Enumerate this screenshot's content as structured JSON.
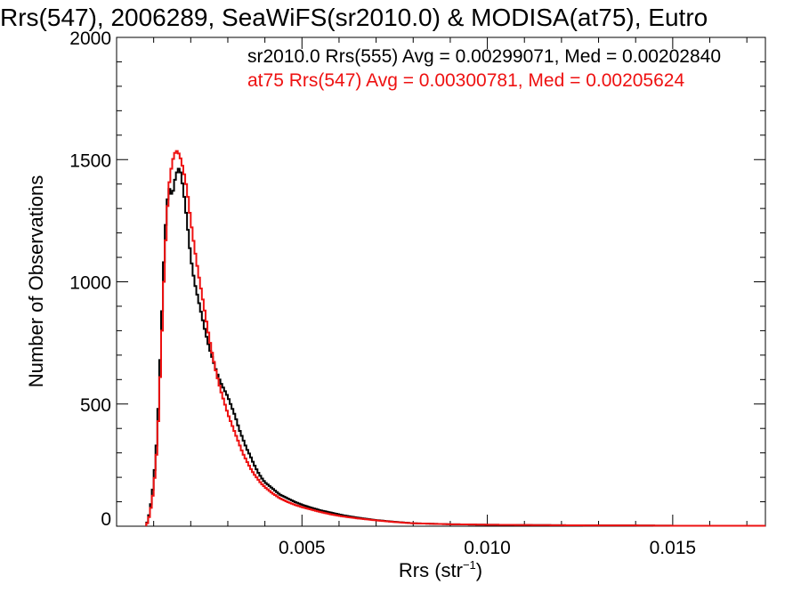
{
  "chart_data": {
    "type": "histogram",
    "title": "Rrs(547), 2006289, SeaWiFS(sr2010.0) & MODISA(at75), Eutro",
    "xlabel": {
      "main": "Rrs (str",
      "sup": "−1",
      "close": ")"
    },
    "ylabel": "Number of Observations",
    "xlim": [
      0.0,
      0.0175
    ],
    "ylim": [
      0,
      2000
    ],
    "x_ticks": [
      {
        "value": 0.005,
        "label": "0.005"
      },
      {
        "value": 0.01,
        "label": "0.010"
      },
      {
        "value": 0.015,
        "label": "0.015"
      }
    ],
    "y_ticks": [
      {
        "value": 0,
        "label": "0"
      },
      {
        "value": 500,
        "label": "500"
      },
      {
        "value": 1000,
        "label": "1000"
      },
      {
        "value": 1500,
        "label": "1500"
      },
      {
        "value": 2000,
        "label": "2000"
      }
    ],
    "grid": false,
    "legend": "top-right",
    "series": [
      {
        "name": "sr2010.0 Rrs(555)",
        "label": "sr2010.0 Rrs(555) Avg = 0.00299071, Med = 0.00202840",
        "color": "#000000",
        "points": [
          [
            0.0008,
            0
          ],
          [
            0.0009,
            60
          ],
          [
            0.001,
            180
          ],
          [
            0.0011,
            380
          ],
          [
            0.0012,
            780
          ],
          [
            0.0013,
            1180
          ],
          [
            0.0014,
            1390
          ],
          [
            0.0015,
            1350
          ],
          [
            0.0016,
            1440
          ],
          [
            0.0017,
            1470
          ],
          [
            0.0018,
            1380
          ],
          [
            0.0019,
            1250
          ],
          [
            0.002,
            1100
          ],
          [
            0.0021,
            1000
          ],
          [
            0.0022,
            930
          ],
          [
            0.0023,
            860
          ],
          [
            0.0024,
            790
          ],
          [
            0.0025,
            730
          ],
          [
            0.0026,
            680
          ],
          [
            0.0027,
            630
          ],
          [
            0.0028,
            590
          ],
          [
            0.0029,
            560
          ],
          [
            0.003,
            530
          ],
          [
            0.0031,
            490
          ],
          [
            0.0032,
            450
          ],
          [
            0.0033,
            400
          ],
          [
            0.0034,
            360
          ],
          [
            0.0035,
            320
          ],
          [
            0.0036,
            290
          ],
          [
            0.0037,
            255
          ],
          [
            0.0038,
            225
          ],
          [
            0.0039,
            200
          ],
          [
            0.004,
            180
          ],
          [
            0.0042,
            155
          ],
          [
            0.0044,
            130
          ],
          [
            0.0046,
            115
          ],
          [
            0.0048,
            100
          ],
          [
            0.005,
            88
          ],
          [
            0.0052,
            78
          ],
          [
            0.0055,
            65
          ],
          [
            0.0058,
            55
          ],
          [
            0.0061,
            45
          ],
          [
            0.0065,
            35
          ],
          [
            0.007,
            25
          ],
          [
            0.0075,
            18
          ],
          [
            0.008,
            12
          ],
          [
            0.009,
            8
          ],
          [
            0.01,
            6
          ],
          [
            0.011,
            5
          ],
          [
            0.012,
            4
          ],
          [
            0.013,
            3
          ],
          [
            0.014,
            3
          ],
          [
            0.015,
            2
          ],
          [
            0.016,
            2
          ],
          [
            0.0175,
            2
          ]
        ]
      },
      {
        "name": "at75 Rrs(547)",
        "label": "at75 Rrs(547) Avg = 0.00300781, Med = 0.00205624",
        "color": "#ee1111",
        "points": [
          [
            0.0008,
            0
          ],
          [
            0.0009,
            50
          ],
          [
            0.001,
            150
          ],
          [
            0.0011,
            340
          ],
          [
            0.0012,
            700
          ],
          [
            0.0013,
            1100
          ],
          [
            0.0014,
            1380
          ],
          [
            0.0015,
            1490
          ],
          [
            0.0016,
            1540
          ],
          [
            0.0017,
            1520
          ],
          [
            0.0018,
            1460
          ],
          [
            0.0019,
            1380
          ],
          [
            0.002,
            1250
          ],
          [
            0.0021,
            1140
          ],
          [
            0.0022,
            1040
          ],
          [
            0.0023,
            950
          ],
          [
            0.0024,
            860
          ],
          [
            0.0025,
            770
          ],
          [
            0.0026,
            690
          ],
          [
            0.0027,
            620
          ],
          [
            0.0028,
            560
          ],
          [
            0.0029,
            510
          ],
          [
            0.003,
            460
          ],
          [
            0.0031,
            420
          ],
          [
            0.0032,
            380
          ],
          [
            0.0033,
            340
          ],
          [
            0.0034,
            300
          ],
          [
            0.0035,
            270
          ],
          [
            0.0036,
            240
          ],
          [
            0.0037,
            215
          ],
          [
            0.0038,
            195
          ],
          [
            0.0039,
            175
          ],
          [
            0.004,
            160
          ],
          [
            0.0042,
            135
          ],
          [
            0.0044,
            115
          ],
          [
            0.0046,
            100
          ],
          [
            0.0048,
            88
          ],
          [
            0.005,
            78
          ],
          [
            0.0052,
            70
          ],
          [
            0.0055,
            58
          ],
          [
            0.0058,
            48
          ],
          [
            0.0061,
            40
          ],
          [
            0.0065,
            32
          ],
          [
            0.007,
            24
          ],
          [
            0.0075,
            17
          ],
          [
            0.008,
            12
          ],
          [
            0.009,
            8
          ],
          [
            0.01,
            6
          ],
          [
            0.011,
            5
          ],
          [
            0.012,
            4
          ],
          [
            0.013,
            3
          ],
          [
            0.014,
            3
          ],
          [
            0.015,
            2
          ],
          [
            0.016,
            2
          ],
          [
            0.0175,
            2
          ]
        ]
      }
    ]
  }
}
